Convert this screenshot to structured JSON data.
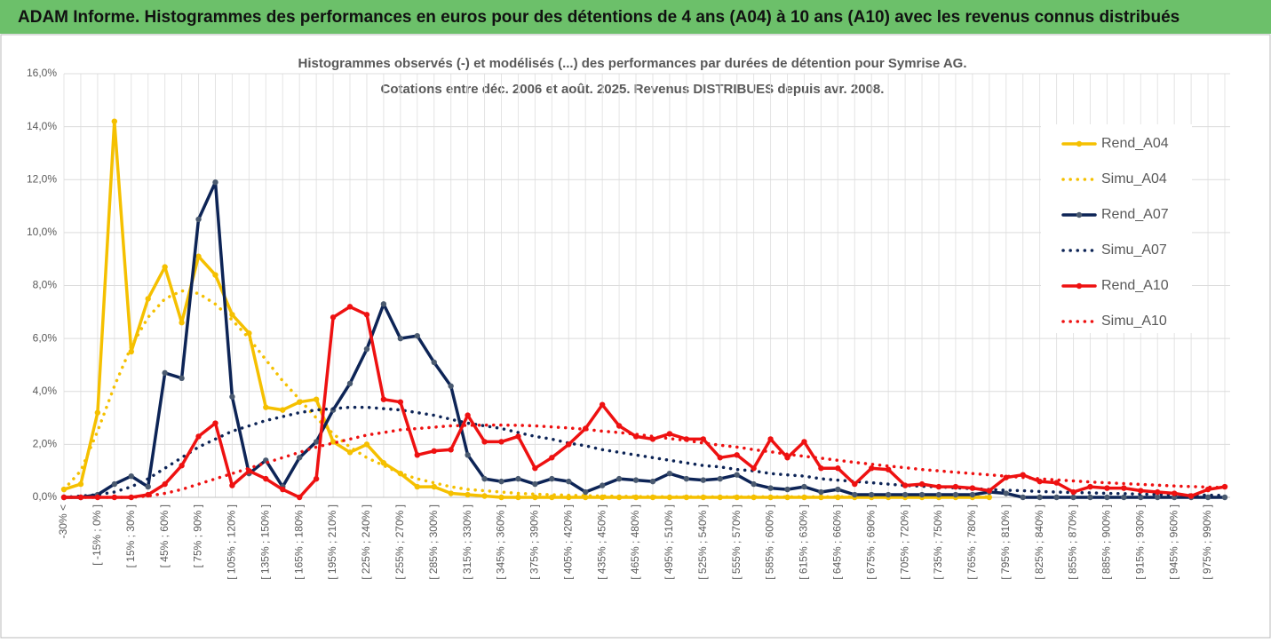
{
  "header": {
    "title": "ADAM Informe. Histogrammes des performances en euros pour des détentions de 4 ans (A04) à 10 ans (A10) avec les revenus connus distribués"
  },
  "chart_data": {
    "type": "line",
    "title": "Histogrammes observés (-) et modélisés (...) des performances par durées de détention pour Symrise AG.",
    "subtitle": "Cotations entre déc. 2006 et août. 2025. Revenus DISTRIBUES depuis avr. 2008.",
    "categories": [
      "-30% <",
      null,
      "[ -15% ; 0% ]",
      null,
      "[ 15% ; 30% ]",
      null,
      "[ 45% ; 60% ]",
      null,
      "[ 75% ; 90% ]",
      null,
      "[ 105% ; 120% ]",
      null,
      "[ 135% ; 150% ]",
      null,
      "[ 165% ; 180% ]",
      null,
      "[ 195% ; 210% ]",
      null,
      "[ 225% ; 240% ]",
      null,
      "[ 255% ; 270% ]",
      null,
      "[ 285% ; 300% ]",
      null,
      "[ 315% ; 330% ]",
      null,
      "[ 345% ; 360% ]",
      null,
      "[ 375% ; 390% ]",
      null,
      "[ 405% ; 420% ]",
      null,
      "[ 435% ; 450% ]",
      null,
      "[ 465% ; 480% ]",
      null,
      "[ 495% ; 510% ]",
      null,
      "[ 525% ; 540% ]",
      null,
      "[ 555% ; 570% ]",
      null,
      "[ 585% ; 600% ]",
      null,
      "[ 615% ; 630% ]",
      null,
      "[ 645% ; 660% ]",
      null,
      "[ 675% ; 690% ]",
      null,
      "[ 705% ; 720% ]",
      null,
      "[ 735% ; 750% ]",
      null,
      "[ 765% ; 780% ]",
      null,
      "[ 795% ; 810% ]",
      null,
      "[ 825% ; 840% ]",
      null,
      "[ 855% ; 870% ]",
      null,
      "[ 885% ; 900% ]",
      null,
      "[ 915% ; 930% ]",
      null,
      "[ 945% ; 960% ]",
      null,
      "[ 975% ; 990% ]",
      null
    ],
    "ylim": [
      0,
      16
    ],
    "yticks": [
      {
        "value": 0,
        "label": "0,0%"
      },
      {
        "value": 2,
        "label": "2,0%"
      },
      {
        "value": 4,
        "label": "4,0%"
      },
      {
        "value": 6,
        "label": "6,0%"
      },
      {
        "value": 8,
        "label": "8,0%"
      },
      {
        "value": 10,
        "label": "10,0%"
      },
      {
        "value": 12,
        "label": "12,0%"
      },
      {
        "value": 14,
        "label": "14,0%"
      },
      {
        "value": 16,
        "label": "16,0%"
      }
    ],
    "grid": true,
    "legend": "right",
    "series": [
      {
        "name": "Rend_A04",
        "color": "#f5c000",
        "style": "solid",
        "marker": true,
        "values": [
          0.3,
          0.5,
          3.2,
          14.2,
          5.5,
          7.5,
          8.7,
          6.6,
          9.1,
          8.4,
          6.9,
          6.2,
          3.4,
          3.3,
          3.6,
          3.7,
          2.1,
          1.7,
          2.0,
          1.3,
          0.9,
          0.4,
          0.4,
          0.15,
          0.1,
          0.05,
          0,
          0,
          0,
          0,
          0,
          0,
          0,
          0,
          0,
          0,
          0,
          0,
          0,
          0,
          0,
          0,
          0,
          0,
          0,
          0,
          0,
          0,
          0,
          0,
          0,
          0,
          0,
          0,
          0,
          0,
          null,
          null,
          null,
          null,
          null,
          null,
          null,
          null,
          null,
          null,
          null,
          null,
          null,
          null
        ]
      },
      {
        "name": "Simu_A04",
        "color": "#f5c000",
        "style": "dotted",
        "marker": false,
        "values": [
          0.3,
          1.0,
          2.5,
          4.2,
          5.7,
          6.8,
          7.5,
          7.8,
          7.7,
          7.3,
          6.7,
          6.0,
          5.2,
          4.4,
          3.7,
          3.0,
          2.4,
          1.9,
          1.5,
          1.2,
          0.9,
          0.7,
          0.55,
          0.4,
          0.3,
          0.25,
          0.2,
          0.15,
          0.12,
          0.1,
          0.08,
          0.06,
          0.05,
          0.04,
          0.03,
          0.03,
          0.02,
          0.02,
          0.02,
          0.02,
          0.02,
          0.02,
          0.02,
          0.02,
          0.02,
          0.02,
          0.02,
          0.02,
          0.02,
          0.02,
          0.02,
          0.02,
          0.02,
          0.02,
          0.02,
          0.02,
          null,
          null,
          null,
          null,
          null,
          null,
          null,
          null,
          null,
          null,
          null,
          null,
          null,
          null
        ]
      },
      {
        "name": "Rend_A07",
        "color": "#0d2456",
        "style": "solid",
        "marker": true,
        "values": [
          0,
          0,
          0.1,
          0.5,
          0.8,
          0.4,
          4.7,
          4.5,
          10.5,
          11.9,
          3.8,
          0.9,
          1.4,
          0.4,
          1.5,
          2.1,
          3.3,
          4.3,
          5.6,
          7.3,
          6.0,
          6.1,
          5.1,
          4.2,
          1.6,
          0.7,
          0.6,
          0.7,
          0.5,
          0.7,
          0.6,
          0.2,
          0.45,
          0.7,
          0.65,
          0.6,
          0.9,
          0.7,
          0.65,
          0.7,
          0.85,
          0.5,
          0.35,
          0.3,
          0.4,
          0.2,
          0.3,
          0.1,
          0.1,
          0.1,
          0.1,
          0.1,
          0.1,
          0.1,
          0.1,
          0.2,
          0.15,
          0,
          0,
          0,
          0,
          0,
          0,
          0,
          0,
          0,
          0,
          0,
          0,
          0
        ]
      },
      {
        "name": "Simu_A07",
        "color": "#0d2456",
        "style": "dotted",
        "marker": false,
        "values": [
          0,
          0.05,
          0.1,
          0.2,
          0.4,
          0.7,
          1.1,
          1.5,
          1.9,
          2.2,
          2.5,
          2.7,
          2.9,
          3.05,
          3.2,
          3.3,
          3.35,
          3.4,
          3.4,
          3.35,
          3.3,
          3.2,
          3.1,
          2.95,
          2.8,
          2.7,
          2.6,
          2.45,
          2.3,
          2.2,
          2.05,
          1.95,
          1.8,
          1.7,
          1.6,
          1.5,
          1.4,
          1.3,
          1.2,
          1.15,
          1.05,
          1.0,
          0.9,
          0.85,
          0.8,
          0.7,
          0.65,
          0.6,
          0.55,
          0.5,
          0.45,
          0.42,
          0.4,
          0.36,
          0.33,
          0.3,
          0.27,
          0.25,
          0.22,
          0.2,
          0.18,
          0.17,
          0.15,
          0.14,
          0.12,
          0.11,
          0.1,
          0.09,
          0.08,
          0.07
        ]
      },
      {
        "name": "Rend_A10",
        "color": "#ee1111",
        "style": "solid",
        "marker": true,
        "values": [
          0,
          0,
          0,
          0,
          0,
          0.1,
          0.5,
          1.2,
          2.3,
          2.8,
          0.45,
          1.0,
          0.7,
          0.3,
          0,
          0.7,
          6.8,
          7.2,
          6.9,
          3.7,
          3.6,
          1.6,
          1.75,
          1.8,
          3.1,
          2.1,
          2.1,
          2.3,
          1.1,
          1.5,
          2.0,
          2.6,
          3.5,
          2.7,
          2.3,
          2.2,
          2.4,
          2.2,
          2.2,
          1.5,
          1.6,
          1.1,
          2.2,
          1.5,
          2.1,
          1.1,
          1.1,
          0.5,
          1.1,
          1.05,
          0.45,
          0.5,
          0.4,
          0.4,
          0.35,
          0.25,
          0.75,
          0.85,
          0.6,
          0.55,
          0.2,
          0.4,
          0.35,
          0.35,
          0.25,
          0.2,
          0.15,
          0.05,
          0.3,
          0.4
        ]
      },
      {
        "name": "Simu_A10",
        "color": "#ee1111",
        "style": "dotted",
        "marker": false,
        "values": [
          0,
          0,
          0,
          0,
          0,
          0.05,
          0.15,
          0.3,
          0.5,
          0.7,
          0.9,
          1.1,
          1.3,
          1.5,
          1.7,
          1.9,
          2.05,
          2.2,
          2.35,
          2.45,
          2.55,
          2.6,
          2.65,
          2.7,
          2.72,
          2.73,
          2.73,
          2.72,
          2.7,
          2.66,
          2.62,
          2.57,
          2.5,
          2.45,
          2.38,
          2.3,
          2.22,
          2.15,
          2.05,
          1.97,
          1.9,
          1.8,
          1.72,
          1.63,
          1.55,
          1.48,
          1.4,
          1.32,
          1.25,
          1.18,
          1.12,
          1.05,
          1.0,
          0.95,
          0.9,
          0.85,
          0.8,
          0.75,
          0.7,
          0.66,
          0.62,
          0.58,
          0.55,
          0.52,
          0.49,
          0.46,
          0.43,
          0.41,
          0.39,
          0.37
        ]
      }
    ]
  }
}
